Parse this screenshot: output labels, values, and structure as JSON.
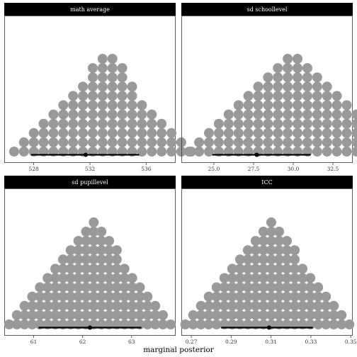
{
  "chart_data": {
    "type": "dotplot",
    "xlabel": "marginal posterior",
    "ylabel": "",
    "grid": false,
    "colors": {
      "dots": "#999999",
      "interval": "#000000",
      "strip": "#000000",
      "panel_border": "#333333"
    },
    "panels": [
      {
        "title": "math average",
        "xlim": [
          525.9,
          538.1
        ],
        "ticks": [
          528,
          532,
          536
        ],
        "tick_labels": [
          "528",
          "532",
          "536"
        ],
        "dots": {
          "x0": 526.6,
          "dx": 0.7,
          "counts": [
            1,
            2,
            3,
            4,
            5,
            6,
            7,
            8,
            10,
            11,
            11,
            10,
            8,
            6,
            5,
            4,
            3,
            2,
            1
          ]
        },
        "interval": {
          "lower": 527.8,
          "upper": 535.5,
          "point": 531.7
        }
      },
      {
        "title": "sd schoollevel",
        "xlim": [
          22.95,
          33.75
        ],
        "ticks": [
          25.0,
          27.5,
          30.0,
          32.5
        ],
        "tick_labels": [
          "25.0",
          "27.5",
          "30.0",
          "32.5"
        ],
        "dots": {
          "x0": 23.45,
          "dx": 0.62,
          "counts": [
            1,
            2,
            3,
            4,
            5,
            6,
            7,
            8,
            9,
            10,
            11,
            11,
            10,
            9,
            8,
            7,
            6,
            5,
            4,
            3,
            2,
            1
          ]
        },
        "interval": {
          "lower": 24.9,
          "upper": 31.1,
          "point": 27.7
        }
      },
      {
        "title": "sd pupillevel",
        "xlim": [
          60.4,
          63.9
        ],
        "ticks": [
          61,
          62,
          63
        ],
        "tick_labels": [
          "61",
          "62",
          "63"
        ],
        "dots": {
          "x0": 60.5,
          "dx": 0.157,
          "counts": [
            1,
            2,
            3,
            4,
            5,
            6,
            7,
            8,
            9,
            10,
            11,
            12,
            11,
            10,
            9,
            7,
            6,
            5,
            4,
            3,
            2,
            1
          ]
        },
        "interval": {
          "lower": 61.1,
          "upper": 63.2,
          "point": 62.15
        }
      },
      {
        "title": "ICC",
        "xlim": [
          0.265,
          0.351
        ],
        "ticks": [
          0.27,
          0.29,
          0.31,
          0.33,
          0.35
        ],
        "tick_labels": [
          "0.27",
          "0.29",
          "0.31",
          "0.33",
          "0.35"
        ],
        "dots": {
          "x0": 0.267,
          "dx": 0.00392,
          "counts": [
            1,
            2,
            3,
            4,
            5,
            6,
            7,
            8,
            9,
            10,
            11,
            12,
            11,
            10,
            9,
            7,
            6,
            5,
            4,
            3,
            2,
            1
          ]
        },
        "interval": {
          "lower": 0.285,
          "upper": 0.331,
          "point": 0.309
        }
      }
    ]
  }
}
